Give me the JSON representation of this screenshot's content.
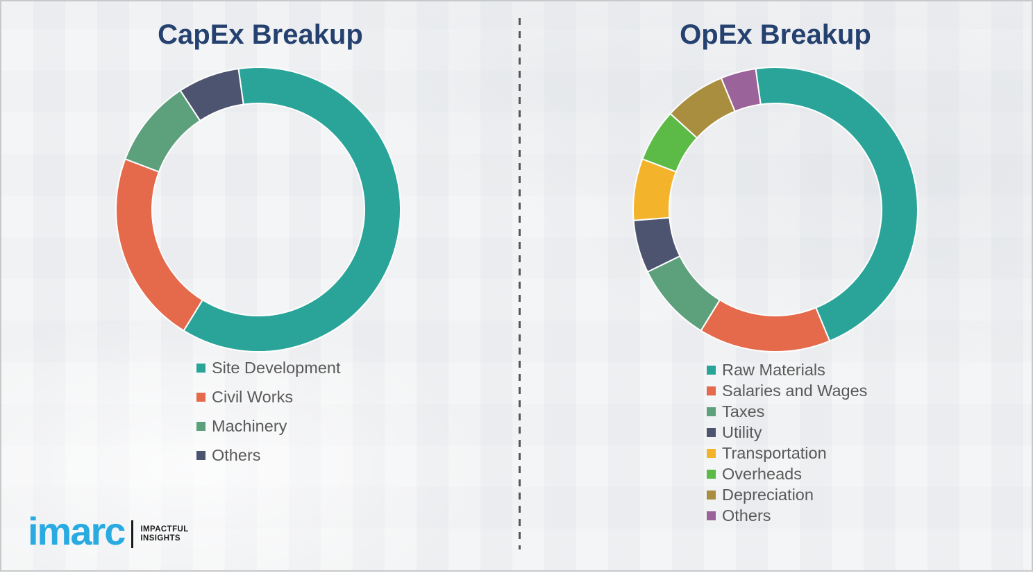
{
  "left_panel": {
    "title": "CapEx Breakup"
  },
  "right_panel": {
    "title": "OpEx Breakup"
  },
  "logo": {
    "brand": "imarc",
    "tagline_line1": "IMPACTFUL",
    "tagline_line2": "INSIGHTS",
    "brand_color": "#29abe2"
  },
  "colors": {
    "title_navy": "#24416f",
    "legend_text_gray": "#595959",
    "background": "#eff0f2",
    "divider_gray": "#565656",
    "teal": "#2aa499",
    "orange": "#e56a4b",
    "muted_green": "#5ca07c",
    "dark_slate": "#4d5470",
    "yellow": "#f3b42c",
    "green": "#5cba46",
    "olive": "#a98e40",
    "purple": "#9a6399"
  },
  "chart_data": [
    {
      "type": "pie",
      "donut": true,
      "title": "CapEx Breakup",
      "start_angle_deg": -8,
      "values_are_estimated_percent": true,
      "legend_position": "below-left",
      "segments": [
        {
          "label": "Site Development",
          "value": 61,
          "color": "#2aa499"
        },
        {
          "label": "Civil Works",
          "value": 22,
          "color": "#e56a4b"
        },
        {
          "label": "Machinery",
          "value": 10,
          "color": "#5ca07c"
        },
        {
          "label": "Others",
          "value": 7,
          "color": "#4d5470"
        }
      ]
    },
    {
      "type": "pie",
      "donut": true,
      "title": "OpEx Breakup",
      "start_angle_deg": -8,
      "values_are_estimated_percent": true,
      "legend_position": "below-left",
      "segments": [
        {
          "label": "Raw Materials",
          "value": 46,
          "color": "#2aa499"
        },
        {
          "label": "Salaries and Wages",
          "value": 15,
          "color": "#e56a4b"
        },
        {
          "label": "Taxes",
          "value": 9,
          "color": "#5ca07c"
        },
        {
          "label": "Utility",
          "value": 6,
          "color": "#4d5470"
        },
        {
          "label": "Transportation",
          "value": 7,
          "color": "#f3b42c"
        },
        {
          "label": "Overheads",
          "value": 6,
          "color": "#5cba46"
        },
        {
          "label": "Depreciation",
          "value": 7,
          "color": "#a98e40"
        },
        {
          "label": "Others",
          "value": 4,
          "color": "#9a6399"
        }
      ]
    }
  ]
}
